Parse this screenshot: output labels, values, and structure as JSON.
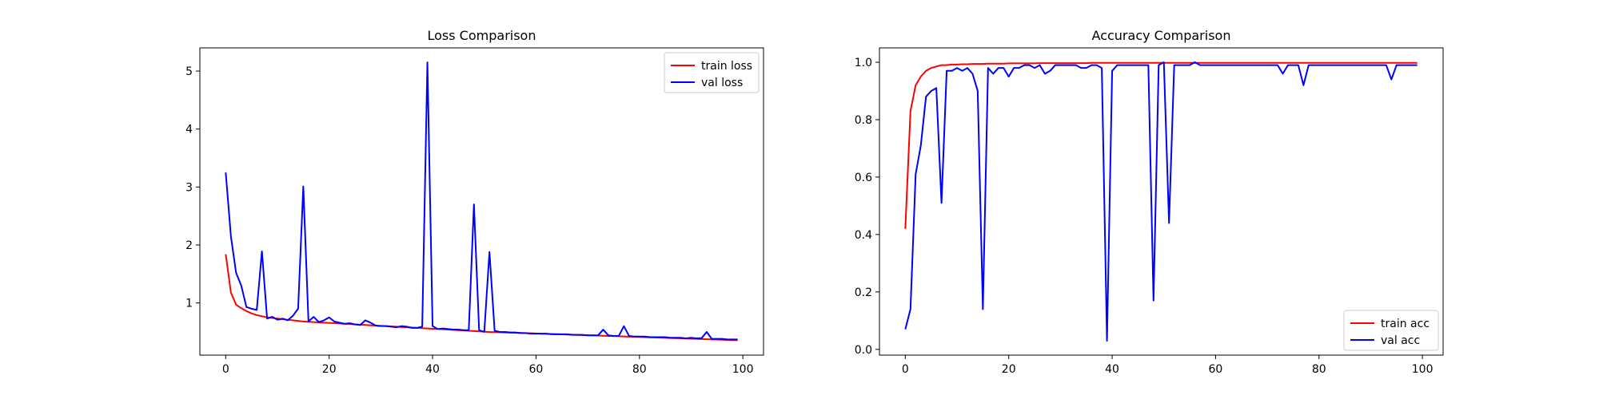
{
  "chart_data": [
    {
      "type": "line",
      "title": "Loss Comparison",
      "xlabel": "",
      "ylabel": "",
      "xlim": [
        -5,
        104
      ],
      "ylim": [
        0.1,
        5.4
      ],
      "xticks": [
        0,
        20,
        40,
        60,
        80,
        100
      ],
      "yticks": [
        1,
        2,
        3,
        4,
        5
      ],
      "grid": false,
      "legend": "top-right",
      "x": [
        0,
        1,
        2,
        3,
        4,
        5,
        6,
        7,
        8,
        9,
        10,
        11,
        12,
        13,
        14,
        15,
        16,
        17,
        18,
        19,
        20,
        21,
        22,
        23,
        24,
        25,
        26,
        27,
        28,
        29,
        30,
        31,
        32,
        33,
        34,
        35,
        36,
        37,
        38,
        39,
        40,
        41,
        42,
        43,
        44,
        45,
        46,
        47,
        48,
        49,
        50,
        51,
        52,
        53,
        54,
        55,
        56,
        57,
        58,
        59,
        60,
        61,
        62,
        63,
        64,
        65,
        66,
        67,
        68,
        69,
        70,
        71,
        72,
        73,
        74,
        75,
        76,
        77,
        78,
        79,
        80,
        81,
        82,
        83,
        84,
        85,
        86,
        87,
        88,
        89,
        90,
        91,
        92,
        93,
        94,
        95,
        96,
        97,
        98,
        99
      ],
      "series": [
        {
          "name": "train loss",
          "color": "#ff0000",
          "values": [
            1.84,
            1.18,
            0.97,
            0.91,
            0.86,
            0.82,
            0.79,
            0.77,
            0.75,
            0.74,
            0.73,
            0.72,
            0.71,
            0.7,
            0.69,
            0.68,
            0.675,
            0.67,
            0.665,
            0.66,
            0.655,
            0.65,
            0.645,
            0.64,
            0.635,
            0.63,
            0.625,
            0.62,
            0.615,
            0.61,
            0.605,
            0.6,
            0.595,
            0.59,
            0.585,
            0.58,
            0.575,
            0.57,
            0.565,
            0.56,
            0.555,
            0.55,
            0.545,
            0.54,
            0.535,
            0.53,
            0.525,
            0.52,
            0.515,
            0.51,
            0.505,
            0.5,
            0.497,
            0.494,
            0.491,
            0.488,
            0.485,
            0.482,
            0.479,
            0.476,
            0.473,
            0.47,
            0.467,
            0.464,
            0.461,
            0.458,
            0.455,
            0.452,
            0.449,
            0.446,
            0.443,
            0.44,
            0.437,
            0.434,
            0.431,
            0.428,
            0.425,
            0.422,
            0.419,
            0.416,
            0.413,
            0.41,
            0.407,
            0.404,
            0.401,
            0.398,
            0.395,
            0.392,
            0.389,
            0.386,
            0.383,
            0.38,
            0.377,
            0.374,
            0.371,
            0.368,
            0.365,
            0.362,
            0.359,
            0.356
          ]
        },
        {
          "name": "val loss",
          "color": "#0000ff",
          "values": [
            3.25,
            2.15,
            1.52,
            1.3,
            0.93,
            0.9,
            0.88,
            1.89,
            0.73,
            0.76,
            0.71,
            0.73,
            0.7,
            0.78,
            0.9,
            3.01,
            0.68,
            0.76,
            0.67,
            0.7,
            0.75,
            0.68,
            0.66,
            0.64,
            0.65,
            0.63,
            0.62,
            0.7,
            0.66,
            0.61,
            0.6,
            0.6,
            0.59,
            0.58,
            0.6,
            0.59,
            0.57,
            0.57,
            0.59,
            5.15,
            0.6,
            0.55,
            0.56,
            0.55,
            0.54,
            0.54,
            0.53,
            0.53,
            2.7,
            0.53,
            0.5,
            1.88,
            0.52,
            0.5,
            0.5,
            0.49,
            0.49,
            0.48,
            0.48,
            0.47,
            0.47,
            0.47,
            0.47,
            0.46,
            0.46,
            0.46,
            0.46,
            0.45,
            0.45,
            0.45,
            0.44,
            0.44,
            0.44,
            0.54,
            0.44,
            0.43,
            0.43,
            0.6,
            0.43,
            0.42,
            0.42,
            0.42,
            0.41,
            0.41,
            0.41,
            0.41,
            0.4,
            0.4,
            0.4,
            0.39,
            0.4,
            0.39,
            0.39,
            0.5,
            0.38,
            0.38,
            0.38,
            0.37,
            0.37,
            0.37
          ]
        }
      ]
    },
    {
      "type": "line",
      "title": "Accuracy Comparison",
      "xlabel": "",
      "ylabel": "",
      "xlim": [
        -5,
        104
      ],
      "ylim": [
        -0.02,
        1.05
      ],
      "xticks": [
        0,
        20,
        40,
        60,
        80,
        100
      ],
      "yticks": [
        0.0,
        0.2,
        0.4,
        0.6,
        0.8,
        1.0
      ],
      "grid": false,
      "legend": "bottom-right",
      "x": [
        0,
        1,
        2,
        3,
        4,
        5,
        6,
        7,
        8,
        9,
        10,
        11,
        12,
        13,
        14,
        15,
        16,
        17,
        18,
        19,
        20,
        21,
        22,
        23,
        24,
        25,
        26,
        27,
        28,
        29,
        30,
        31,
        32,
        33,
        34,
        35,
        36,
        37,
        38,
        39,
        40,
        41,
        42,
        43,
        44,
        45,
        46,
        47,
        48,
        49,
        50,
        51,
        52,
        53,
        54,
        55,
        56,
        57,
        58,
        59,
        60,
        61,
        62,
        63,
        64,
        65,
        66,
        67,
        68,
        69,
        70,
        71,
        72,
        73,
        74,
        75,
        76,
        77,
        78,
        79,
        80,
        81,
        82,
        83,
        84,
        85,
        86,
        87,
        88,
        89,
        90,
        91,
        92,
        93,
        94,
        95,
        96,
        97,
        98,
        99
      ],
      "series": [
        {
          "name": "train acc",
          "color": "#ff0000",
          "values": [
            0.42,
            0.83,
            0.92,
            0.95,
            0.97,
            0.98,
            0.985,
            0.99,
            0.99,
            0.992,
            0.992,
            0.993,
            0.993,
            0.994,
            0.994,
            0.994,
            0.995,
            0.995,
            0.995,
            0.995,
            0.996,
            0.996,
            0.996,
            0.996,
            0.996,
            0.996,
            0.997,
            0.997,
            0.997,
            0.997,
            0.997,
            0.997,
            0.997,
            0.997,
            0.997,
            0.997,
            0.998,
            0.998,
            0.998,
            0.998,
            0.998,
            0.998,
            0.998,
            0.998,
            0.998,
            0.998,
            0.998,
            0.998,
            0.998,
            0.998,
            0.998,
            0.998,
            0.998,
            0.998,
            0.998,
            0.998,
            0.998,
            0.998,
            0.998,
            0.998,
            0.998,
            0.998,
            0.998,
            0.998,
            0.998,
            0.998,
            0.998,
            0.998,
            0.998,
            0.998,
            0.998,
            0.998,
            0.998,
            0.998,
            0.998,
            0.998,
            0.998,
            0.998,
            0.998,
            0.998,
            0.998,
            0.998,
            0.998,
            0.998,
            0.998,
            0.998,
            0.998,
            0.998,
            0.998,
            0.998,
            0.998,
            0.998,
            0.998,
            0.998,
            0.998,
            0.998,
            0.998,
            0.998,
            0.998,
            0.998
          ]
        },
        {
          "name": "val acc",
          "color": "#0000ff",
          "values": [
            0.07,
            0.14,
            0.61,
            0.71,
            0.88,
            0.9,
            0.91,
            0.51,
            0.97,
            0.97,
            0.98,
            0.97,
            0.98,
            0.96,
            0.9,
            0.14,
            0.98,
            0.96,
            0.98,
            0.98,
            0.95,
            0.98,
            0.98,
            0.99,
            0.99,
            0.98,
            0.99,
            0.96,
            0.97,
            0.99,
            0.99,
            0.99,
            0.99,
            0.99,
            0.98,
            0.98,
            0.99,
            0.99,
            0.98,
            0.03,
            0.97,
            0.99,
            0.99,
            0.99,
            0.99,
            0.99,
            0.99,
            0.99,
            0.17,
            0.99,
            1.0,
            0.44,
            0.99,
            0.99,
            0.99,
            0.99,
            1.0,
            0.99,
            0.99,
            0.99,
            0.99,
            0.99,
            0.99,
            0.99,
            0.99,
            0.99,
            0.99,
            0.99,
            0.99,
            0.99,
            0.99,
            0.99,
            0.99,
            0.96,
            0.99,
            0.99,
            0.99,
            0.92,
            0.99,
            0.99,
            0.99,
            0.99,
            0.99,
            0.99,
            0.99,
            0.99,
            0.99,
            0.99,
            0.99,
            0.99,
            0.99,
            0.99,
            0.99,
            0.99,
            0.94,
            0.99,
            0.99,
            0.99,
            0.99,
            0.99
          ]
        }
      ]
    }
  ]
}
